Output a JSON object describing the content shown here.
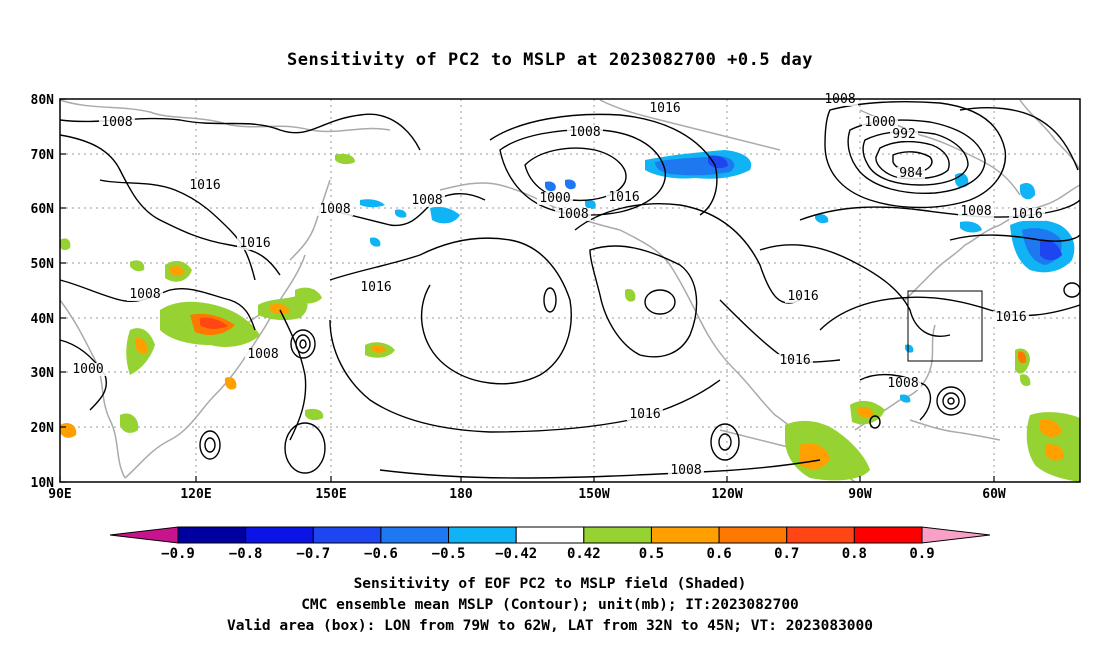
{
  "title": "Sensitivity of PC2 to MSLP at 2023082700 +0.5 day",
  "map": {
    "lat_labels": [
      "80N",
      "70N",
      "60N",
      "50N",
      "40N",
      "30N",
      "20N",
      "10N"
    ],
    "lon_labels": [
      "90E",
      "120E",
      "150E",
      "180",
      "150W",
      "120W",
      "90W",
      "60W"
    ],
    "contour_labels": [
      {
        "text": "1008"
      },
      {
        "text": "1016"
      },
      {
        "text": "1016"
      },
      {
        "text": "1008"
      },
      {
        "text": "1000"
      },
      {
        "text": "1008"
      },
      {
        "text": "1008"
      },
      {
        "text": "1008"
      },
      {
        "text": "1016"
      },
      {
        "text": "1008"
      },
      {
        "text": "1000"
      },
      {
        "text": "1016"
      },
      {
        "text": "1008"
      },
      {
        "text": "1016"
      },
      {
        "text": "1008"
      },
      {
        "text": "1000"
      },
      {
        "text": "992"
      },
      {
        "text": "984"
      },
      {
        "text": "1008"
      },
      {
        "text": "1016"
      },
      {
        "text": "1016"
      },
      {
        "text": "1016"
      },
      {
        "text": "1016"
      },
      {
        "text": "1008"
      },
      {
        "text": "1016"
      },
      {
        "text": "1008"
      }
    ],
    "valid_box": {
      "lon_from": "79W",
      "lon_to": "62W",
      "lat_from": "32N",
      "lat_to": "45N"
    }
  },
  "colorbar": {
    "tick_labels": [
      "−0.9",
      "−0.8",
      "−0.7",
      "−0.6",
      "−0.5",
      "−0.42",
      "0.42",
      "0.5",
      "0.6",
      "0.7",
      "0.8",
      "0.9"
    ],
    "colors": [
      "#0000a0",
      "#0a14e6",
      "#1e46f0",
      "#1e78f0",
      "#10b4f4",
      "#ffffff",
      "#96d232",
      "#ffa000",
      "#ff7800",
      "#ff4614",
      "#ff0000"
    ],
    "under_color": "#c8148c",
    "over_color": "#f8a0c8"
  },
  "captions": {
    "line1": "Sensitivity of EOF PC2 to MSLP field (Shaded)",
    "line2": "CMC ensemble mean MSLP (Contour); unit(mb); IT:2023082700",
    "line3": "Valid area (box): LON from 79W to 62W, LAT from 32N to 45N; VT: 2023083000"
  }
}
